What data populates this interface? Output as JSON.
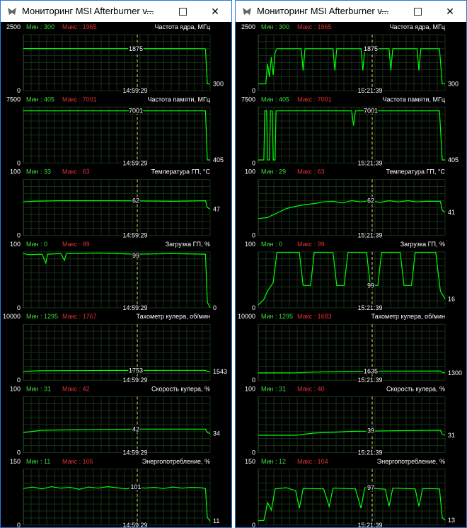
{
  "windows": [
    {
      "title": "Мониторинг MSI Afterburner v...",
      "time": "14:59:29",
      "graphs": [
        {
          "name": "Частота ядра, МГц",
          "min_label": "Мин : 300",
          "max_label": "Макс : 1965",
          "y_top": "2500",
          "y_bottom": "0",
          "marker_value": "1875",
          "current": "300",
          "ymax": 2500,
          "points": [
            [
              0,
              1880
            ],
            [
              0.97,
              1875
            ],
            [
              0.975,
              1860
            ],
            [
              0.985,
              300
            ],
            [
              1,
              300
            ]
          ]
        },
        {
          "name": "Частота памяти, МГц",
          "min_label": "Мин : 405",
          "max_label": "Макс : 7001",
          "y_top": "7500",
          "y_bottom": "0",
          "marker_value": "7001",
          "current": "405",
          "ymax": 7500,
          "points": [
            [
              0,
              7001
            ],
            [
              0.975,
              7001
            ],
            [
              0.985,
              405
            ],
            [
              1,
              405
            ]
          ]
        },
        {
          "name": "Температура ГП, °С",
          "min_label": "Мин : 33",
          "max_label": "Макс : 63",
          "y_top": "100",
          "y_bottom": "0",
          "marker_value": "62",
          "current": "47",
          "ymax": 100,
          "points": [
            [
              0,
              60
            ],
            [
              0.05,
              61
            ],
            [
              0.2,
              62
            ],
            [
              0.5,
              62
            ],
            [
              0.8,
              61
            ],
            [
              0.975,
              62
            ],
            [
              0.985,
              50
            ],
            [
              1,
              47
            ]
          ]
        },
        {
          "name": "Загрузка ГП, %",
          "min_label": "Мин : 0",
          "max_label": "Макс : 99",
          "y_top": "100",
          "y_bottom": "0",
          "marker_value": "99",
          "current": "0",
          "ymax": 100,
          "points": [
            [
              0,
              97
            ],
            [
              0.03,
              95
            ],
            [
              0.1,
              96
            ],
            [
              0.12,
              80
            ],
            [
              0.13,
              96
            ],
            [
              0.2,
              97
            ],
            [
              0.22,
              85
            ],
            [
              0.23,
              97
            ],
            [
              0.3,
              97
            ],
            [
              0.4,
              98
            ],
            [
              0.6,
              96
            ],
            [
              0.8,
              97
            ],
            [
              0.975,
              96
            ],
            [
              0.985,
              10
            ],
            [
              1,
              0
            ]
          ]
        },
        {
          "name": "Тахометр кулера, об/мин",
          "min_label": "Мин : 1295",
          "max_label": "Макс : 1767",
          "y_top": "10000",
          "y_bottom": "0",
          "marker_value": "1753",
          "current": "1543",
          "ymax": 10000,
          "points": [
            [
              0,
              1600
            ],
            [
              0.1,
              1700
            ],
            [
              0.5,
              1750
            ],
            [
              0.975,
              1760
            ],
            [
              0.985,
              1600
            ],
            [
              1,
              1543
            ]
          ]
        },
        {
          "name": "Скорость кулера, %",
          "min_label": "Мин : 31",
          "max_label": "Макс : 42",
          "y_top": "100",
          "y_bottom": "0",
          "marker_value": "42",
          "current": "34",
          "ymax": 100,
          "points": [
            [
              0,
              36
            ],
            [
              0.1,
              40
            ],
            [
              0.3,
              41
            ],
            [
              0.6,
              42
            ],
            [
              0.975,
              42
            ],
            [
              0.985,
              36
            ],
            [
              1,
              34
            ]
          ]
        },
        {
          "name": "Энергопотребление, %",
          "min_label": "Мин : 11",
          "max_label": "Макс : 105",
          "y_top": "150",
          "y_bottom": "0",
          "marker_value": "101",
          "current": "11",
          "ymax": 150,
          "points": [
            [
              0,
              98
            ],
            [
              0.05,
              102
            ],
            [
              0.1,
              97
            ],
            [
              0.15,
              103
            ],
            [
              0.2,
              99
            ],
            [
              0.25,
              101
            ],
            [
              0.3,
              96
            ],
            [
              0.35,
              102
            ],
            [
              0.4,
              99
            ],
            [
              0.45,
              103
            ],
            [
              0.5,
              100
            ],
            [
              0.55,
              97
            ],
            [
              0.6,
              102
            ],
            [
              0.65,
              99
            ],
            [
              0.7,
              101
            ],
            [
              0.75,
              98
            ],
            [
              0.8,
              102
            ],
            [
              0.85,
              99
            ],
            [
              0.9,
              101
            ],
            [
              0.95,
              100
            ],
            [
              0.975,
              98
            ],
            [
              0.985,
              20
            ],
            [
              1,
              11
            ]
          ]
        }
      ]
    },
    {
      "title": "Мониторинг MSI Afterburner v...",
      "time": "15:21:39",
      "graphs": [
        {
          "name": "Частота ядра, МГц",
          "min_label": "Мин : 300",
          "max_label": "Макс : 1965",
          "y_top": "2500",
          "y_bottom": "0",
          "marker_value": "1875",
          "current": "300",
          "ymax": 2500,
          "points": [
            [
              0,
              300
            ],
            [
              0.04,
              300
            ],
            [
              0.05,
              1200
            ],
            [
              0.06,
              600
            ],
            [
              0.07,
              1500
            ],
            [
              0.08,
              700
            ],
            [
              0.09,
              1700
            ],
            [
              0.1,
              1875
            ],
            [
              0.2,
              1875
            ],
            [
              0.23,
              1875
            ],
            [
              0.24,
              900
            ],
            [
              0.25,
              1875
            ],
            [
              0.4,
              1875
            ],
            [
              0.41,
              900
            ],
            [
              0.42,
              1875
            ],
            [
              0.55,
              1875
            ],
            [
              0.56,
              900
            ],
            [
              0.57,
              1875
            ],
            [
              0.7,
              1875
            ],
            [
              0.71,
              900
            ],
            [
              0.72,
              1875
            ],
            [
              0.85,
              1875
            ],
            [
              0.86,
              900
            ],
            [
              0.87,
              1875
            ],
            [
              0.97,
              1875
            ],
            [
              0.985,
              300
            ],
            [
              1,
              300
            ]
          ]
        },
        {
          "name": "Частота памяти, МГц",
          "min_label": "Мин : 405",
          "max_label": "Макс : 7001",
          "y_top": "7500",
          "y_bottom": "0",
          "marker_value": "7001",
          "current": "405",
          "ymax": 7500,
          "points": [
            [
              0,
              405
            ],
            [
              0.03,
              405
            ],
            [
              0.035,
              7001
            ],
            [
              0.045,
              7001
            ],
            [
              0.05,
              405
            ],
            [
              0.06,
              405
            ],
            [
              0.065,
              7001
            ],
            [
              0.075,
              7001
            ],
            [
              0.08,
              405
            ],
            [
              0.09,
              405
            ],
            [
              0.095,
              7001
            ],
            [
              0.5,
              7001
            ],
            [
              0.51,
              5000
            ],
            [
              0.52,
              7001
            ],
            [
              0.97,
              7001
            ],
            [
              0.985,
              405
            ],
            [
              1,
              405
            ]
          ]
        },
        {
          "name": "Температура ГП, °С",
          "min_label": "Мин : 29",
          "max_label": "Макс : 63",
          "y_top": "100",
          "y_bottom": "0",
          "marker_value": "62",
          "current": "41",
          "ymax": 100,
          "points": [
            [
              0,
              30
            ],
            [
              0.05,
              32
            ],
            [
              0.1,
              40
            ],
            [
              0.15,
              48
            ],
            [
              0.2,
              52
            ],
            [
              0.25,
              55
            ],
            [
              0.3,
              57
            ],
            [
              0.35,
              60
            ],
            [
              0.4,
              61
            ],
            [
              0.45,
              58
            ],
            [
              0.5,
              62
            ],
            [
              0.55,
              60
            ],
            [
              0.6,
              62
            ],
            [
              0.65,
              59
            ],
            [
              0.7,
              62
            ],
            [
              0.75,
              60
            ],
            [
              0.8,
              62
            ],
            [
              0.85,
              60
            ],
            [
              0.9,
              61
            ],
            [
              0.975,
              61
            ],
            [
              0.985,
              45
            ],
            [
              1,
              41
            ]
          ]
        },
        {
          "name": "Загрузка ГП, %",
          "min_label": "Мин : 0",
          "max_label": "Макс : 99",
          "y_top": "100",
          "y_bottom": "0",
          "marker_value": "99",
          "current": "16",
          "ymax": 100,
          "points": [
            [
              0,
              5
            ],
            [
              0.03,
              15
            ],
            [
              0.05,
              30
            ],
            [
              0.08,
              45
            ],
            [
              0.1,
              99
            ],
            [
              0.22,
              99
            ],
            [
              0.24,
              40
            ],
            [
              0.28,
              40
            ],
            [
              0.3,
              99
            ],
            [
              0.4,
              99
            ],
            [
              0.42,
              40
            ],
            [
              0.46,
              40
            ],
            [
              0.48,
              99
            ],
            [
              0.58,
              99
            ],
            [
              0.6,
              40
            ],
            [
              0.64,
              40
            ],
            [
              0.66,
              99
            ],
            [
              0.76,
              99
            ],
            [
              0.78,
              40
            ],
            [
              0.82,
              40
            ],
            [
              0.84,
              99
            ],
            [
              0.95,
              99
            ],
            [
              0.975,
              30
            ],
            [
              1,
              16
            ]
          ]
        },
        {
          "name": "Тахометр кулера, об/мин",
          "min_label": "Мин : 1295",
          "max_label": "Макс : 1683",
          "y_top": "10000",
          "y_bottom": "0",
          "marker_value": "1635",
          "current": "1300",
          "ymax": 10000,
          "points": [
            [
              0,
              1300
            ],
            [
              0.2,
              1320
            ],
            [
              0.3,
              1450
            ],
            [
              0.5,
              1600
            ],
            [
              0.7,
              1630
            ],
            [
              0.975,
              1640
            ],
            [
              0.985,
              1400
            ],
            [
              1,
              1300
            ]
          ]
        },
        {
          "name": "Скорость кулера, %",
          "min_label": "Мин : 31",
          "max_label": "Макс : 40",
          "y_top": "100",
          "y_bottom": "0",
          "marker_value": "39",
          "current": "31",
          "ymax": 100,
          "points": [
            [
              0,
              31
            ],
            [
              0.2,
              31
            ],
            [
              0.3,
              35
            ],
            [
              0.5,
              38
            ],
            [
              0.7,
              39
            ],
            [
              0.975,
              40
            ],
            [
              0.985,
              33
            ],
            [
              1,
              31
            ]
          ]
        },
        {
          "name": "Энергопотребление, %",
          "min_label": "Мин : 12",
          "max_label": "Макс : 104",
          "y_top": "150",
          "y_bottom": "0",
          "marker_value": "97",
          "current": "13",
          "ymax": 150,
          "points": [
            [
              0,
              12
            ],
            [
              0.03,
              12
            ],
            [
              0.05,
              60
            ],
            [
              0.07,
              40
            ],
            [
              0.09,
              97
            ],
            [
              0.15,
              100
            ],
            [
              0.2,
              92
            ],
            [
              0.22,
              45
            ],
            [
              0.24,
              98
            ],
            [
              0.35,
              97
            ],
            [
              0.38,
              50
            ],
            [
              0.4,
              99
            ],
            [
              0.52,
              97
            ],
            [
              0.55,
              45
            ],
            [
              0.57,
              100
            ],
            [
              0.68,
              96
            ],
            [
              0.7,
              50
            ],
            [
              0.72,
              99
            ],
            [
              0.84,
              97
            ],
            [
              0.86,
              50
            ],
            [
              0.88,
              98
            ],
            [
              0.97,
              97
            ],
            [
              0.985,
              20
            ],
            [
              1,
              13
            ]
          ]
        }
      ]
    }
  ]
}
